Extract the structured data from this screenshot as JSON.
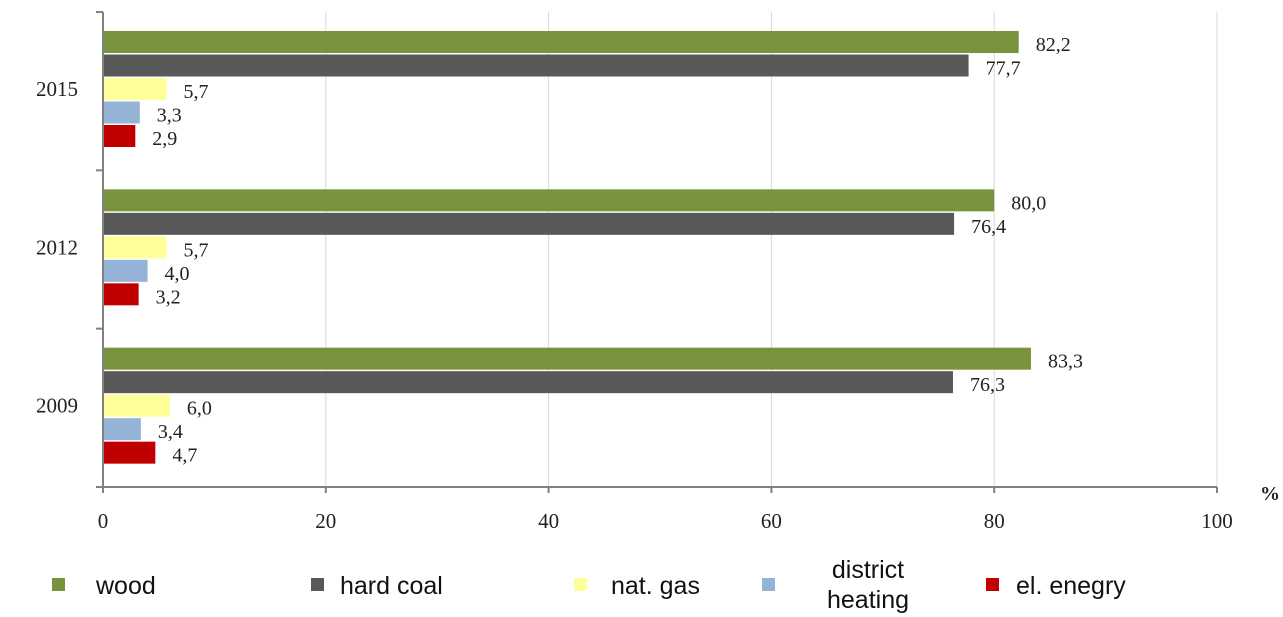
{
  "chart_data": {
    "type": "bar",
    "orientation": "horizontal",
    "categories": [
      "2015",
      "2012",
      "2009"
    ],
    "series": [
      {
        "name": "wood",
        "color": "#77933c",
        "values": [
          82.2,
          80.0,
          83.3
        ],
        "labels": [
          "82,2",
          "80,0",
          "83,3"
        ]
      },
      {
        "name": "hard coal",
        "color": "#595959",
        "values": [
          77.7,
          76.4,
          76.3
        ],
        "labels": [
          "77,7",
          "76,4",
          "76,3"
        ]
      },
      {
        "name": "nat. gas",
        "color": "#ffff99",
        "values": [
          5.7,
          5.7,
          6.0
        ],
        "labels": [
          "5,7",
          "5,7",
          "6,0"
        ]
      },
      {
        "name": "district heating",
        "color": "#95b3d7",
        "values": [
          3.3,
          4.0,
          3.4
        ],
        "labels": [
          "3,3",
          "4,0",
          "3,4"
        ]
      },
      {
        "name": "el. enegry",
        "color": "#c00000",
        "values": [
          2.9,
          3.2,
          4.7
        ],
        "labels": [
          "2,9",
          "3,2",
          "4,7"
        ]
      }
    ],
    "xlim": [
      0,
      100
    ],
    "xticks": [
      "0",
      "20",
      "40",
      "60",
      "80",
      "100"
    ],
    "xlabel": "%",
    "grid": "vertical",
    "legend": "bottom",
    "legend_lines": {
      "district heating": [
        "district",
        "heating"
      ]
    }
  }
}
